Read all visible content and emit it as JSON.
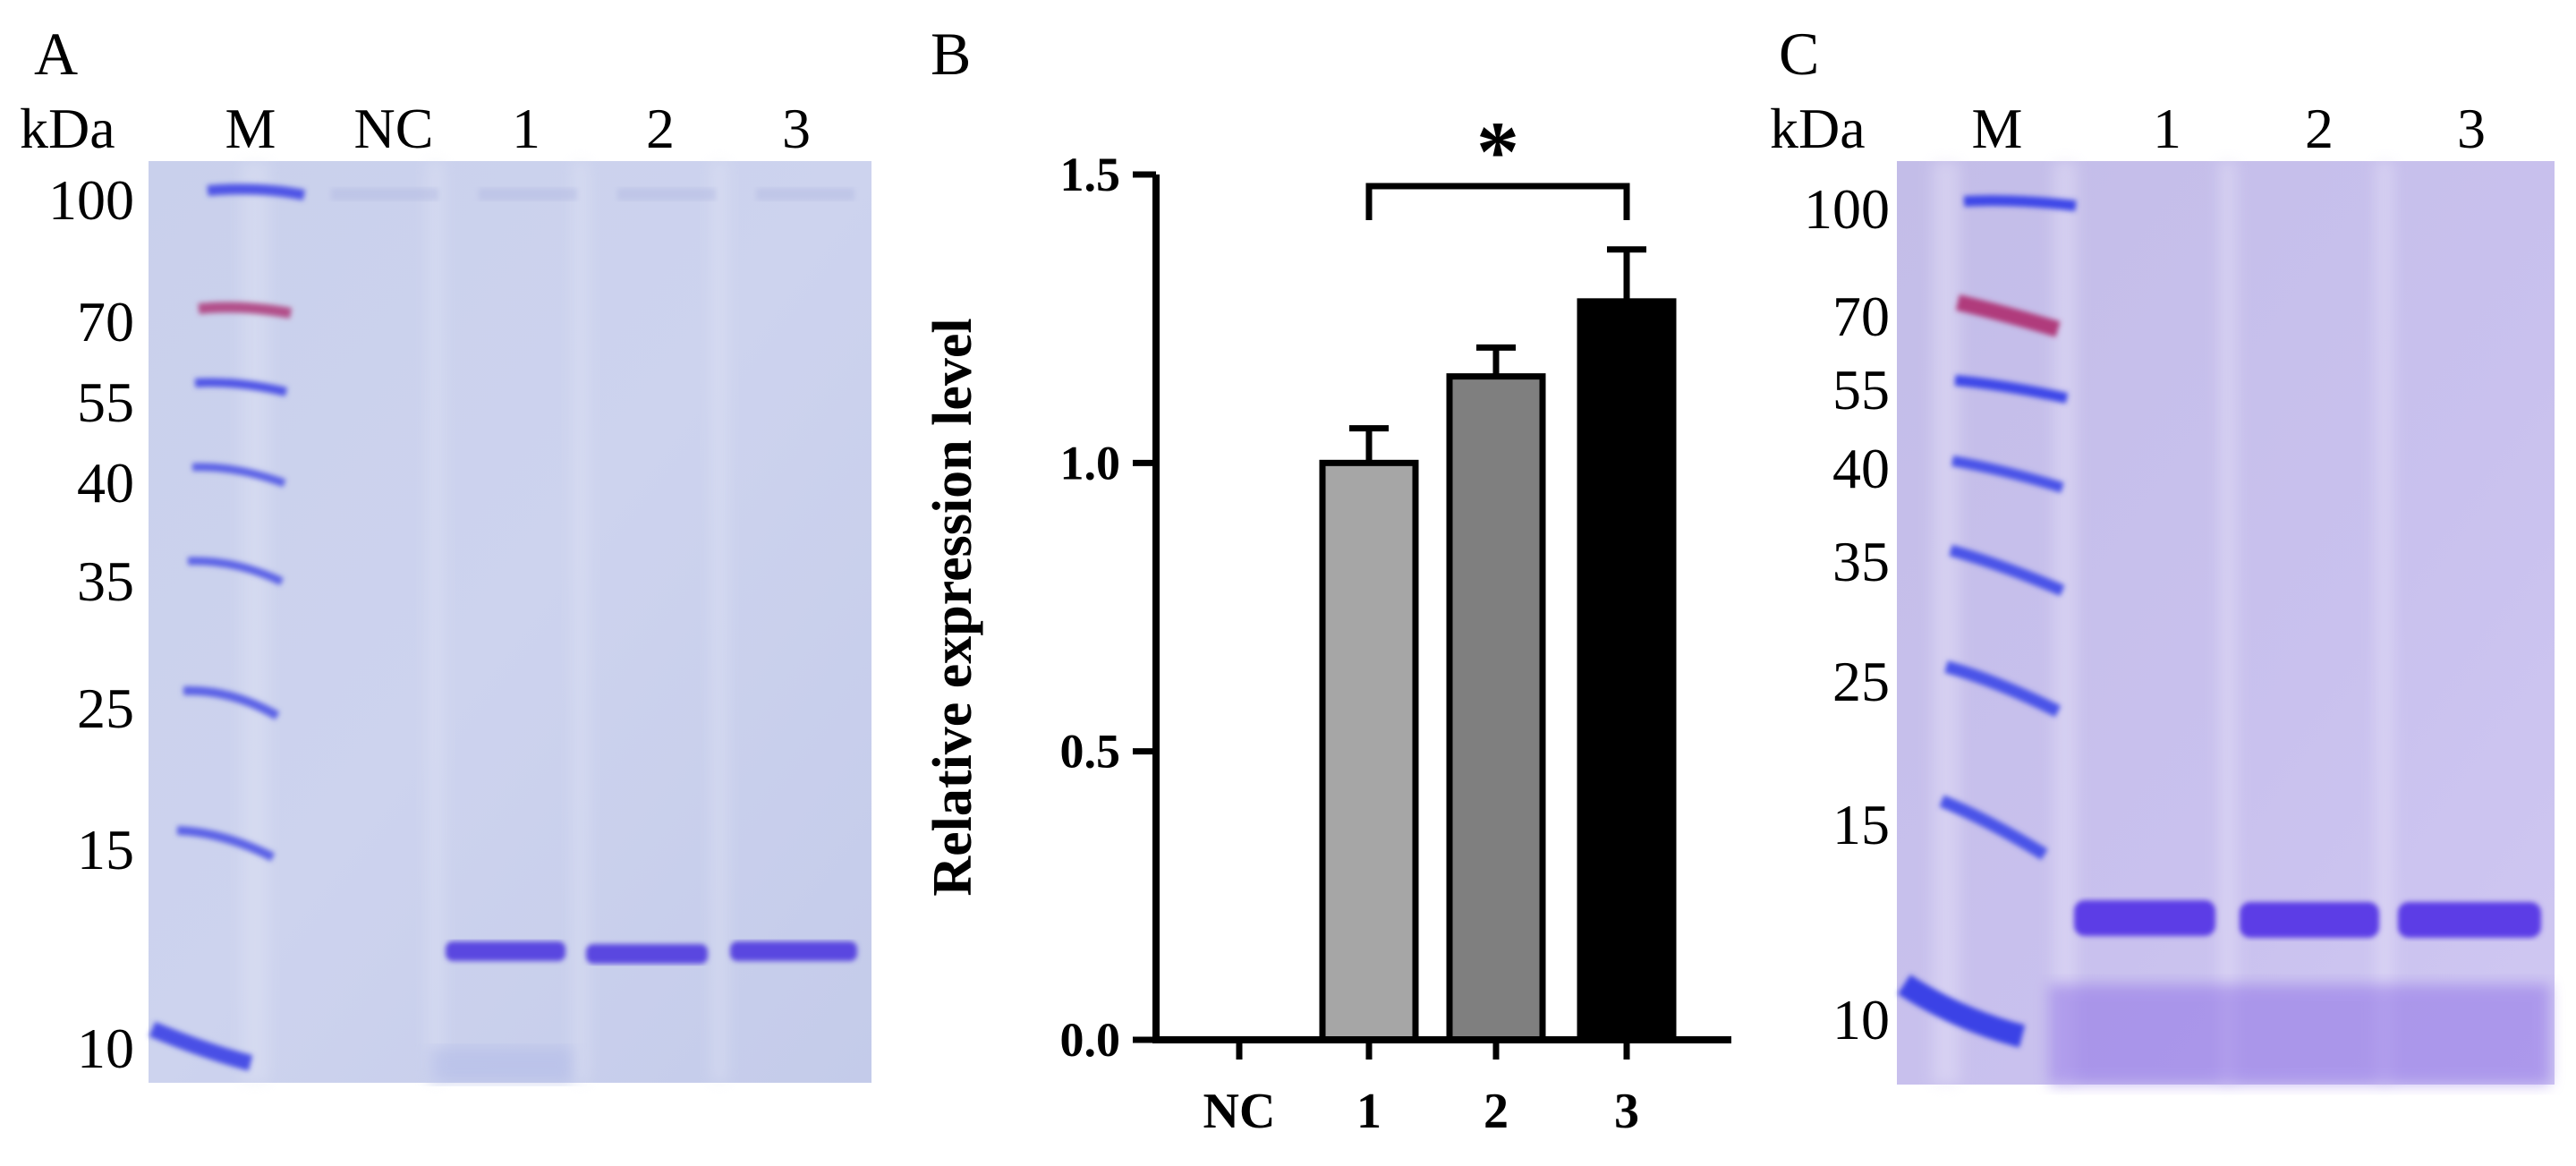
{
  "panel_a": {
    "letter": "A",
    "unit": "kDa",
    "lanes": [
      "M",
      "NC",
      "1",
      "2",
      "3"
    ],
    "markers": [
      "100",
      "70",
      "55",
      "40",
      "35",
      "25",
      "15",
      "10"
    ]
  },
  "panel_b": {
    "letter": "B",
    "significance": "*",
    "chart_data": {
      "type": "bar",
      "categories": [
        "NC",
        "1",
        "2",
        "3"
      ],
      "values": [
        0,
        1.0,
        1.15,
        1.28
      ],
      "errors": [
        0,
        0.06,
        0.05,
        0.09
      ],
      "bar_colors": [
        "#ffffff",
        "#a6a6a6",
        "#7f7f7f",
        "#000000"
      ],
      "ylabel": "Relative expression level",
      "ylim": [
        0,
        1.5
      ],
      "yticks": [
        "0.0",
        "0.5",
        "1.0",
        "1.5"
      ],
      "comparison": {
        "from": "1",
        "to": "3",
        "label": "*"
      }
    }
  },
  "panel_c": {
    "letter": "C",
    "unit": "kDa",
    "lanes": [
      "M",
      "1",
      "2",
      "3"
    ],
    "markers": [
      "100",
      "70",
      "55",
      "40",
      "35",
      "25",
      "15",
      "10"
    ]
  }
}
